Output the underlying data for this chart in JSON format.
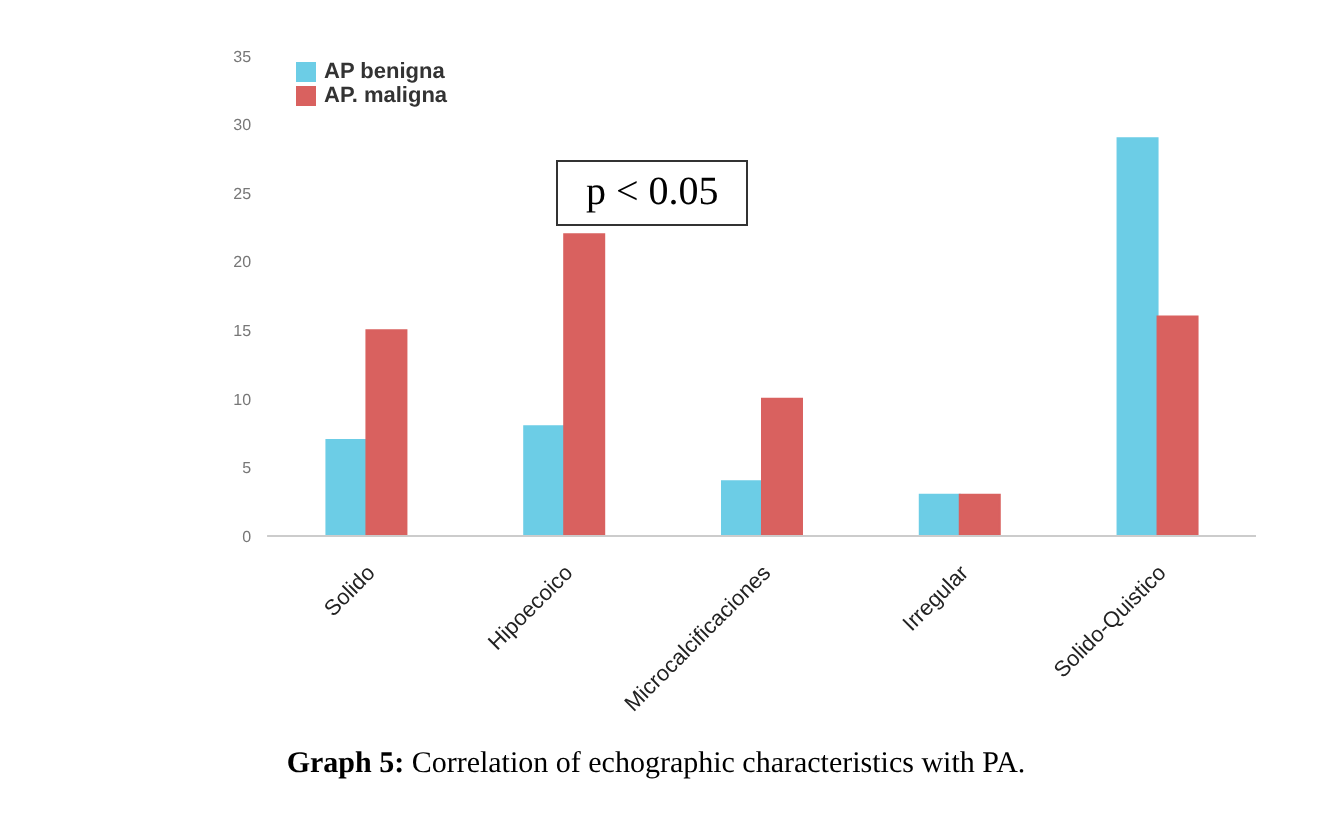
{
  "chart_data": {
    "type": "bar",
    "title": "Graph 5: Correlation of echographic characteristics with PA.",
    "categories": [
      "Solido",
      "Hipoecoico",
      "Microcalcificaciones",
      "Irregular",
      "Solido-Quistico"
    ],
    "series": [
      {
        "name": "AP benigna",
        "color": "#6ccde6",
        "values": [
          7,
          8,
          4,
          3,
          29
        ]
      },
      {
        "name": "AP. maligna",
        "color": "#d9615f",
        "values": [
          15,
          22,
          10,
          3,
          16
        ]
      }
    ],
    "ylim": [
      0,
      35
    ],
    "yticks": [
      0,
      5,
      10,
      15,
      20,
      25,
      30,
      35
    ],
    "grid": false,
    "legend": "top left",
    "annotations": [
      "p < 0.05"
    ]
  }
}
